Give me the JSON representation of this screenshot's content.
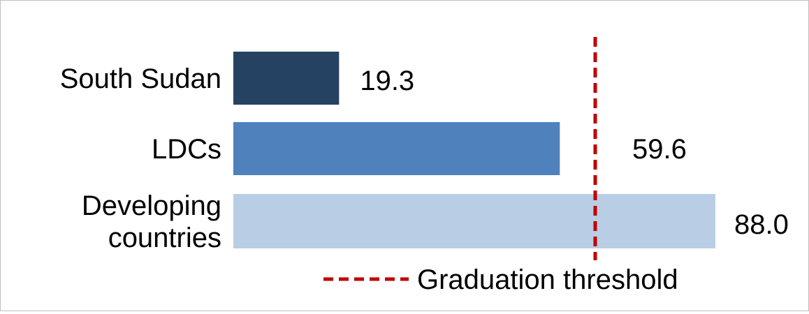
{
  "chart_data": {
    "type": "bar",
    "orientation": "horizontal",
    "categories": [
      "South Sudan",
      "LDCs",
      "Developing countries"
    ],
    "category_lines": [
      [
        "South Sudan"
      ],
      [
        "LDCs"
      ],
      [
        "Developing",
        "countries"
      ]
    ],
    "values": [
      19.3,
      59.6,
      88.0
    ],
    "value_labels": [
      "19.3",
      "59.6",
      "88.0"
    ],
    "colors": [
      "#264263",
      "#4f81bd",
      "#b9cde5"
    ],
    "xlim": [
      0,
      88.0
    ],
    "title": "",
    "xlabel": "",
    "ylabel": "",
    "grid": false,
    "threshold": {
      "label": "Graduation threshold",
      "color": "#c00000",
      "style": "dashed"
    },
    "legend_position": "bottom-center"
  }
}
